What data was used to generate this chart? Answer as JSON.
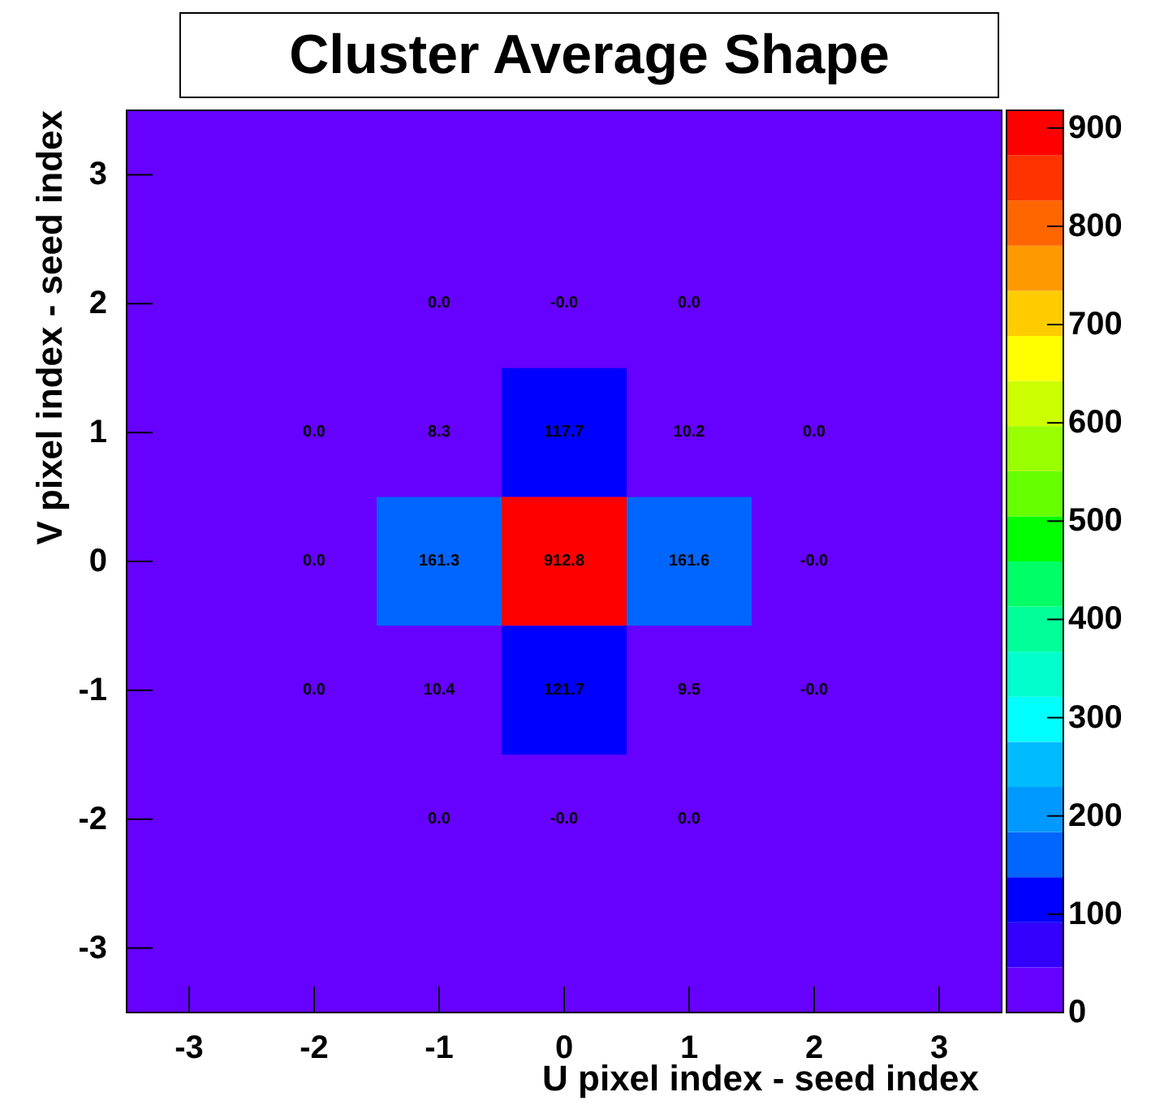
{
  "chart_data": {
    "type": "heatmap",
    "title": "Cluster Average Shape",
    "xlabel": "U pixel index - seed index",
    "ylabel": "V pixel index - seed index",
    "categories": [
      "-3",
      "-2",
      "-1",
      "0",
      "1",
      "2",
      "3"
    ],
    "y_categories": [
      "3",
      "2",
      "1",
      "0",
      "-1",
      "-2",
      "-3"
    ],
    "cells": [
      [
        null,
        null,
        null,
        null,
        null,
        null,
        null
      ],
      [
        null,
        null,
        0.0,
        -0.0,
        0.0,
        null,
        null
      ],
      [
        null,
        0.0,
        8.3,
        117.7,
        10.2,
        0.0,
        null
      ],
      [
        null,
        0.0,
        161.3,
        912.8,
        161.6,
        -0.0,
        null
      ],
      [
        null,
        0.0,
        10.4,
        121.7,
        9.5,
        -0.0,
        null
      ],
      [
        null,
        null,
        0.0,
        -0.0,
        0.0,
        null,
        null
      ],
      [
        null,
        null,
        null,
        null,
        null,
        null,
        null
      ]
    ],
    "cell_labels": [
      [
        null,
        null,
        null,
        null,
        null,
        null,
        null
      ],
      [
        null,
        null,
        "0.0",
        "-0.0",
        "0.0",
        null,
        null
      ],
      [
        null,
        "0.0",
        "8.3",
        "117.7",
        "10.2",
        "0.0",
        null
      ],
      [
        null,
        "0.0",
        "161.3",
        "912.8",
        "161.6",
        "-0.0",
        null
      ],
      [
        null,
        "0.0",
        "10.4",
        "121.7",
        "9.5",
        "-0.0",
        null
      ],
      [
        null,
        null,
        "0.0",
        "-0.0",
        "0.0",
        null,
        null
      ],
      [
        null,
        null,
        null,
        null,
        null,
        null,
        null
      ]
    ],
    "clim": [
      0,
      918
    ],
    "cticks": [
      0,
      100,
      200,
      300,
      400,
      500,
      600,
      700,
      800,
      900
    ],
    "grid": false
  }
}
